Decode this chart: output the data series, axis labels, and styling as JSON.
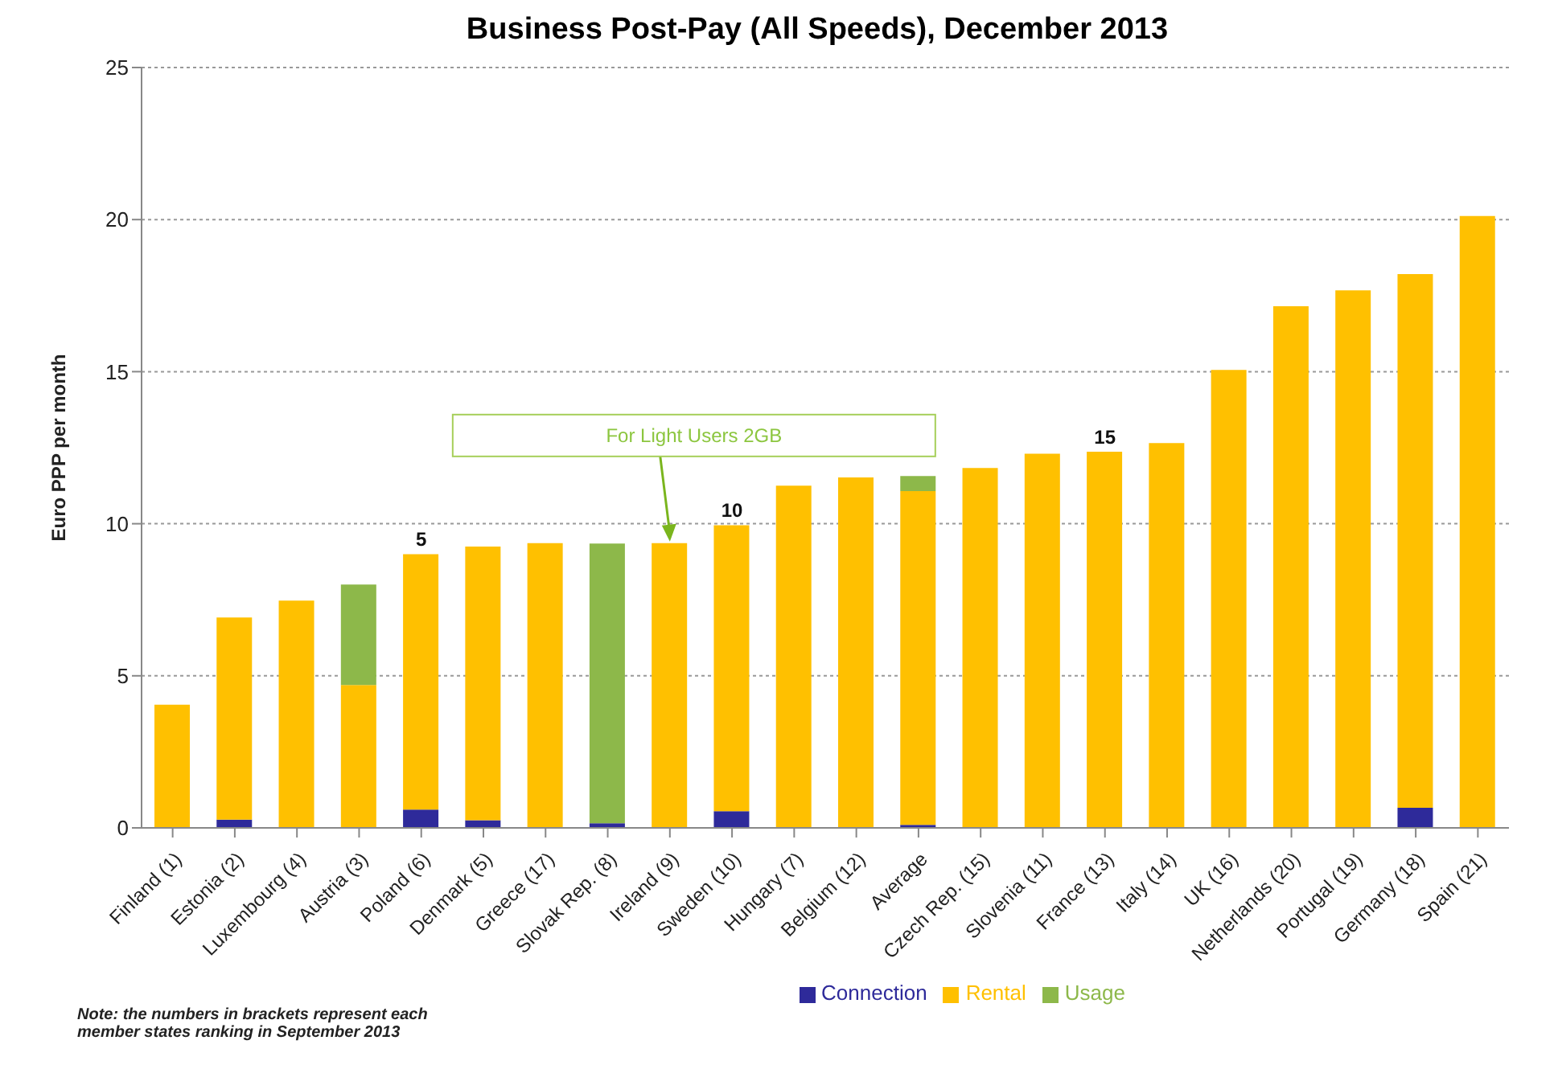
{
  "chart_data": {
    "type": "bar",
    "stacked": true,
    "title": "Business Post-Pay (All Speeds), December 2013",
    "ylabel": "Euro PPP per month",
    "categories": [
      "Finland (1)",
      "Estonia (2)",
      "Luxembourg (4)",
      "Austria (3)",
      "Poland (6)",
      "Denmark (5)",
      "Greece (17)",
      "Slovak Rep. (8)",
      "Ireland (9)",
      "Sweden (10)",
      "Hungary (7)",
      "Belgium (12)",
      "Average",
      "Czech Rep. (15)",
      "Slovenia (11)",
      "France (13)",
      "Italy (14)",
      "UK (16)",
      "Netherlands (20)",
      "Portugal (19)",
      "Germany (18)",
      "Spain (21)"
    ],
    "series": [
      {
        "name": "Connection",
        "color": "#2e2a9a",
        "values": [
          0,
          0.27,
          0,
          0,
          0.6,
          0.25,
          0,
          0.15,
          0,
          0.55,
          0,
          0,
          0.1,
          0,
          0,
          0,
          0,
          0,
          0,
          0,
          0.66,
          0
        ]
      },
      {
        "name": "Rental",
        "color": "#ffc000",
        "values": [
          4.05,
          6.65,
          7.47,
          4.7,
          8.4,
          9.0,
          9.36,
          0,
          9.36,
          9.4,
          11.25,
          11.52,
          10.97,
          11.83,
          12.3,
          12.37,
          12.65,
          15.06,
          17.15,
          17.67,
          17.55,
          20.12
        ]
      },
      {
        "name": "Usage",
        "color": "#8db84a",
        "values": [
          0,
          0,
          0,
          3.3,
          0,
          0,
          0,
          9.2,
          0,
          0,
          0,
          0,
          0.5,
          0,
          0,
          0,
          0,
          0,
          0,
          0,
          0,
          0
        ]
      }
    ],
    "ylim": [
      0,
      25
    ],
    "yticks": [
      0,
      5,
      10,
      15,
      20,
      25
    ],
    "grid": "y",
    "legend": "bottom",
    "annotations": [
      {
        "text": "5",
        "x": "Poland (6)",
        "y": 9.0
      },
      {
        "text": "10",
        "x": "Sweden (10)",
        "y": 9.95
      },
      {
        "text": "15",
        "x": "France (13)",
        "y": 12.37
      },
      {
        "text": "For Light Users 2GB",
        "x": "Ireland (9)",
        "y": 9.36
      },
      "Note: the numbers in brackets  represent each member states  ranking in September 2013"
    ]
  }
}
